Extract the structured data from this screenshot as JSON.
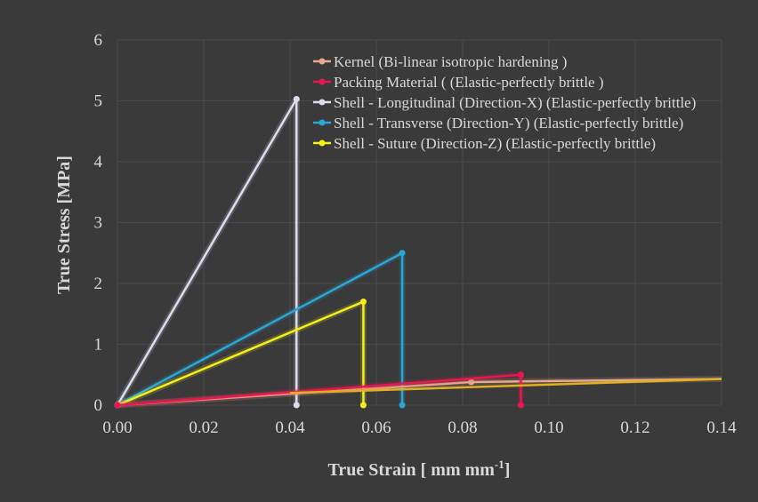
{
  "chart_data": {
    "type": "line",
    "xlabel": "True Strain [ mm mm",
    "xlabel_sup": "-1",
    "xlabel_end": "]",
    "ylabel": "True Stress [MPa]",
    "xlim": [
      0,
      0.14
    ],
    "ylim": [
      0,
      6
    ],
    "x_ticks": [
      "0.00",
      "0.02",
      "0.04",
      "0.06",
      "0.08",
      "0.10",
      "0.12",
      "0.14"
    ],
    "y_ticks": [
      "0",
      "1",
      "2",
      "3",
      "4",
      "5",
      "6"
    ],
    "grid": true,
    "legend_position": "top-right",
    "colors": {
      "background": "#3a3a3a",
      "grid": "#4a4a4a",
      "text": "#d9d9d9"
    },
    "series": [
      {
        "name": "Kernel (Bi-linear isotropic hardening )",
        "color": "#e8a88a",
        "x": [
          0,
          0.082,
          0.14
        ],
        "y": [
          0,
          0.38,
          0.43
        ],
        "markers": [
          true,
          true,
          false
        ]
      },
      {
        "name": "Packing Material ( (Elastic-perfectly brittle )",
        "color": "#e8174f",
        "x": [
          0,
          0.0935,
          0.0935
        ],
        "y": [
          0,
          0.5,
          0
        ],
        "markers": [
          true,
          true,
          true
        ]
      },
      {
        "name": "Shell - Longitudinal (Direction-X) (Elastic-perfectly brittle)",
        "color": "#dcdcf0",
        "x": [
          0,
          0.0415,
          0.0415
        ],
        "y": [
          0,
          5.03,
          0
        ],
        "markers": [
          true,
          true,
          true
        ]
      },
      {
        "name": "Shell - Transverse (Direction-Y) (Elastic-perfectly brittle)",
        "color": "#2aa7d6",
        "x": [
          0,
          0.066,
          0.066
        ],
        "y": [
          0,
          2.5,
          0
        ],
        "markers": [
          true,
          true,
          true
        ]
      },
      {
        "name": "Shell - Suture (Direction-Z) (Elastic-perfectly brittle)",
        "color": "#f5f01a",
        "x": [
          0,
          0.057,
          0.057
        ],
        "y": [
          0,
          1.7,
          0
        ],
        "markers": [
          true,
          true,
          true
        ]
      }
    ],
    "overlay_line": {
      "color": "#e0b020",
      "x": [
        0.04,
        0.14
      ],
      "y": [
        0.2,
        0.43
      ]
    }
  }
}
